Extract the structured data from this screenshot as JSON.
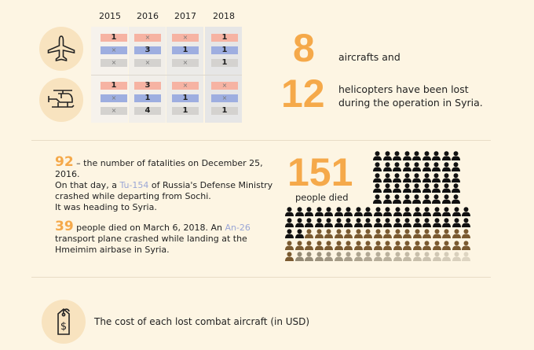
{
  "years": [
    "2015",
    "2016",
    "2017",
    "2018"
  ],
  "aircraft_table": {
    "planes": [
      [
        "1",
        "×",
        "×"
      ],
      [
        "×",
        "3",
        "×"
      ],
      [
        "×",
        "1",
        "×"
      ],
      [
        "1",
        "1",
        "1"
      ]
    ],
    "helicopters": [
      [
        "1",
        "×",
        "×"
      ],
      [
        "3",
        "1",
        "4"
      ],
      [
        "×",
        "1",
        "1"
      ],
      [
        "×",
        "×",
        "1"
      ]
    ]
  },
  "summary": {
    "aircraft_count": "8",
    "aircraft_label": "aircrafts and",
    "heli_count": "12",
    "heli_label_1": "helicopters have been lost",
    "heli_label_2": "during the operation in Syria."
  },
  "fatalities": {
    "tu_num": "92",
    "tu_line1": " – the number of fatalities on December 25, 2016.",
    "tu_line2a": "On that day, a ",
    "tu_model": "Tu-154",
    "tu_line2b": " of Russia's Defense Ministry",
    "tu_line3": "crashed while departing from Sochi.",
    "tu_line4": "It was heading to Syria.",
    "an_num": "39",
    "an_line1a": " people died on March 6, 2018. An ",
    "an_model": "An-26",
    "an_line2": "transport plane crashed while landing at the",
    "an_line3": "Hmeimim airbase in Syria.",
    "total": "151",
    "total_label": "people died"
  },
  "cost": {
    "label": "The cost of each lost combat aircraft (in USD)"
  },
  "colors": {
    "accent": "#f5a94a",
    "pink": "#f6b3a3",
    "blue": "#9eaee0",
    "gray": "#d4d2cf"
  }
}
